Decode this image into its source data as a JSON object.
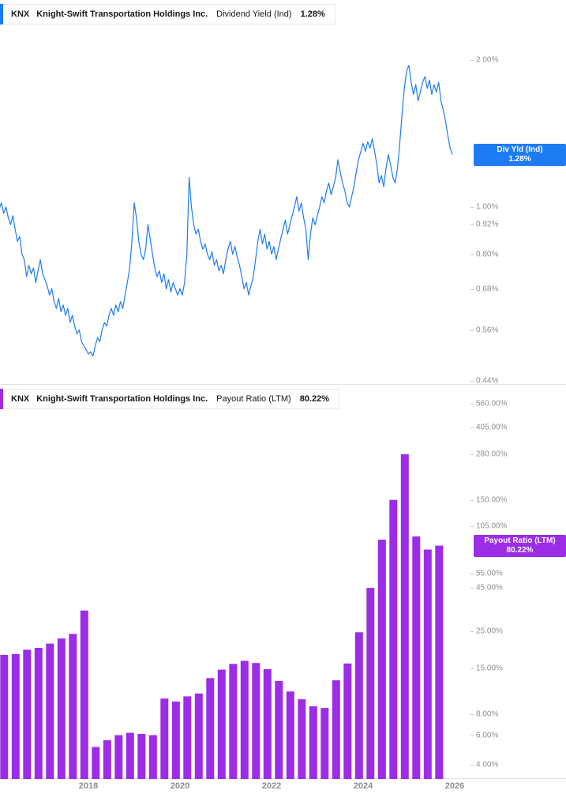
{
  "panels": [
    {
      "legend": {
        "ticker": "KNX",
        "company": "Knight-Swift Transportation Holdings Inc.",
        "metric": "Dividend Yield (Ind)",
        "value": "1.28%"
      },
      "badge": {
        "line1": "Div Yld (Ind)",
        "line2": "1.28%"
      },
      "color": "#1d7cf4",
      "y_ticks": [
        {
          "label": "2.00%",
          "value": 2.0
        },
        {
          "label": "1.00%",
          "value": 1.0
        },
        {
          "label": "0.92%",
          "value": 0.92
        },
        {
          "label": "0.80%",
          "value": 0.8
        },
        {
          "label": "0.68%",
          "value": 0.68
        },
        {
          "label": "0.56%",
          "value": 0.56
        },
        {
          "label": "0.44%",
          "value": 0.44
        }
      ]
    },
    {
      "legend": {
        "ticker": "KNX",
        "company": "Knight-Swift Transportation Holdings Inc.",
        "metric": "Payout Ratio (LTM)",
        "value": "80.22%"
      },
      "badge": {
        "line1": "Payout Ratio (LTM)",
        "line2": "80.22%"
      },
      "color": "#9c2ce6",
      "y_ticks": [
        {
          "label": "560.00%",
          "value": 560
        },
        {
          "label": "405.00%",
          "value": 405
        },
        {
          "label": "280.00%",
          "value": 280
        },
        {
          "label": "150.00%",
          "value": 150
        },
        {
          "label": "105.00%",
          "value": 105
        },
        {
          "label": "55.00%",
          "value": 55
        },
        {
          "label": "45.00%",
          "value": 45
        },
        {
          "label": "25.00%",
          "value": 25
        },
        {
          "label": "15.00%",
          "value": 15
        },
        {
          "label": "8.00%",
          "value": 8
        },
        {
          "label": "6.00%",
          "value": 6
        },
        {
          "label": "4.00%",
          "value": 4
        }
      ]
    }
  ],
  "x_axis": {
    "labels": [
      {
        "label": "2018",
        "year": 2018
      },
      {
        "label": "2020",
        "year": 2020
      },
      {
        "label": "2022",
        "year": 2022
      },
      {
        "label": "2024",
        "year": 2024
      },
      {
        "label": "2026",
        "year": 2026
      }
    ]
  },
  "chart_data": [
    {
      "type": "line",
      "title": "KNX Knight-Swift Transportation Holdings Inc. Dividend Yield (Ind)",
      "series_name": "Div Yld (Ind)",
      "unit": "%",
      "scale": "log",
      "grid": false,
      "legend_position": "top-left",
      "current_value": 1.28,
      "x_start": 2016.05,
      "x_step": 0.05,
      "x_range": [
        2016.05,
        2025.95
      ],
      "y_ticks": [
        2.0,
        1.0,
        0.92,
        0.8,
        0.68,
        0.56,
        0.44
      ],
      "values": [
        0.99,
        1.02,
        0.97,
        1.0,
        0.95,
        0.92,
        0.96,
        0.9,
        0.85,
        0.87,
        0.8,
        0.78,
        0.72,
        0.76,
        0.73,
        0.75,
        0.7,
        0.74,
        0.78,
        0.73,
        0.71,
        0.69,
        0.66,
        0.68,
        0.64,
        0.62,
        0.65,
        0.61,
        0.63,
        0.6,
        0.62,
        0.58,
        0.6,
        0.57,
        0.55,
        0.56,
        0.53,
        0.52,
        0.51,
        0.5,
        0.505,
        0.495,
        0.52,
        0.54,
        0.53,
        0.56,
        0.58,
        0.57,
        0.6,
        0.62,
        0.6,
        0.63,
        0.61,
        0.64,
        0.62,
        0.66,
        0.7,
        0.75,
        0.85,
        1.02,
        0.95,
        0.85,
        0.8,
        0.78,
        0.82,
        0.92,
        0.86,
        0.8,
        0.75,
        0.72,
        0.74,
        0.7,
        0.73,
        0.68,
        0.71,
        0.67,
        0.7,
        0.68,
        0.66,
        0.68,
        0.66,
        0.7,
        0.8,
        1.15,
        1.0,
        0.92,
        0.88,
        0.9,
        0.85,
        0.82,
        0.84,
        0.8,
        0.78,
        0.81,
        0.76,
        0.78,
        0.74,
        0.76,
        0.73,
        0.78,
        0.82,
        0.85,
        0.8,
        0.83,
        0.79,
        0.76,
        0.72,
        0.68,
        0.7,
        0.66,
        0.69,
        0.72,
        0.78,
        0.85,
        0.9,
        0.84,
        0.88,
        0.82,
        0.85,
        0.8,
        0.83,
        0.78,
        0.82,
        0.86,
        0.9,
        0.94,
        0.88,
        0.92,
        0.96,
        1.0,
        1.05,
        0.98,
        1.02,
        0.95,
        0.9,
        0.78,
        0.88,
        0.95,
        0.92,
        0.96,
        1.0,
        1.05,
        1.02,
        1.08,
        1.12,
        1.06,
        1.1,
        1.15,
        1.25,
        1.18,
        1.12,
        1.08,
        1.02,
        1.0,
        1.05,
        1.1,
        1.18,
        1.25,
        1.3,
        1.35,
        1.3,
        1.36,
        1.32,
        1.38,
        1.3,
        1.22,
        1.12,
        1.16,
        1.1,
        1.2,
        1.28,
        1.22,
        1.15,
        1.12,
        1.2,
        1.35,
        1.55,
        1.75,
        1.9,
        1.95,
        1.8,
        1.7,
        1.78,
        1.65,
        1.72,
        1.8,
        1.85,
        1.75,
        1.82,
        1.7,
        1.78,
        1.72,
        1.8,
        1.65,
        1.58,
        1.5,
        1.4,
        1.32,
        1.28
      ]
    },
    {
      "type": "bar",
      "title": "KNX Knight-Swift Transportation Holdings Inc. Payout Ratio (LTM)",
      "series_name": "Payout Ratio (LTM)",
      "unit": "%",
      "scale": "log",
      "grid": false,
      "legend_position": "top-left",
      "current_value": 80.22,
      "x_start": 2016.16,
      "x_step": 0.25,
      "y_ticks": [
        560,
        405,
        280,
        150,
        105,
        55,
        45,
        25,
        15,
        8,
        6,
        4
      ],
      "values": [
        18.0,
        18.2,
        19.3,
        19.8,
        21.0,
        22.5,
        24.0,
        33.0,
        5.1,
        5.6,
        6.0,
        6.2,
        6.1,
        6.0,
        9.9,
        9.5,
        10.2,
        10.6,
        13.1,
        14.7,
        15.9,
        16.6,
        16.1,
        14.8,
        12.6,
        10.9,
        9.8,
        8.9,
        8.7,
        12.7,
        16.0,
        24.5,
        45.0,
        87.0,
        150.0,
        280.0,
        91.0,
        76.0,
        80.22
      ]
    }
  ]
}
